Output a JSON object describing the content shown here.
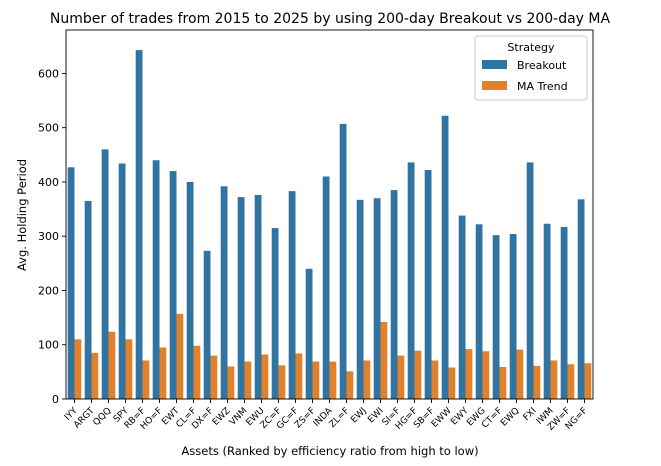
{
  "chart_data": {
    "type": "bar",
    "title": "Number of trades from 2015 to 2025 by using 200-day Breakout vs 200-day MA",
    "xlabel": "Assets (Ranked by efficiency ratio from high to low)",
    "ylabel": "Avg. Holding Period",
    "ylim": [
      0,
      680
    ],
    "yticks": [
      0,
      100,
      200,
      300,
      400,
      500,
      600
    ],
    "grid": false,
    "legend": {
      "title": "Strategy",
      "placement": "upper-right"
    },
    "categories": [
      "IYY",
      "ARGT",
      "QQQ",
      "SPY",
      "RB=F",
      "HO=F",
      "EWT",
      "CL=F",
      "DX=F",
      "EWZ",
      "VNM",
      "EWU",
      "ZC=F",
      "GC=F",
      "ZS=F",
      "INDA",
      "ZL=F",
      "EWJ",
      "EWI",
      "SI=F",
      "HG=F",
      "SB=F",
      "EWW",
      "EWY",
      "EWG",
      "CT=F",
      "EWQ",
      "FXI",
      "IWM",
      "ZW=F",
      "NG=F"
    ],
    "series": [
      {
        "name": "Breakout",
        "color": "#3274a1",
        "values": [
          427,
          365,
          460,
          434,
          643,
          440,
          420,
          400,
          273,
          392,
          372,
          376,
          315,
          383,
          240,
          410,
          507,
          367,
          370,
          385,
          436,
          422,
          522,
          338,
          322,
          302,
          304,
          436,
          323,
          317,
          368
        ]
      },
      {
        "name": "MA Trend",
        "color": "#e1812c",
        "values": [
          110,
          85,
          124,
          110,
          71,
          95,
          157,
          98,
          80,
          60,
          69,
          82,
          62,
          84,
          69,
          69,
          51,
          71,
          142,
          80,
          89,
          71,
          58,
          92,
          88,
          59,
          91,
          61,
          71,
          64,
          66
        ]
      }
    ]
  }
}
